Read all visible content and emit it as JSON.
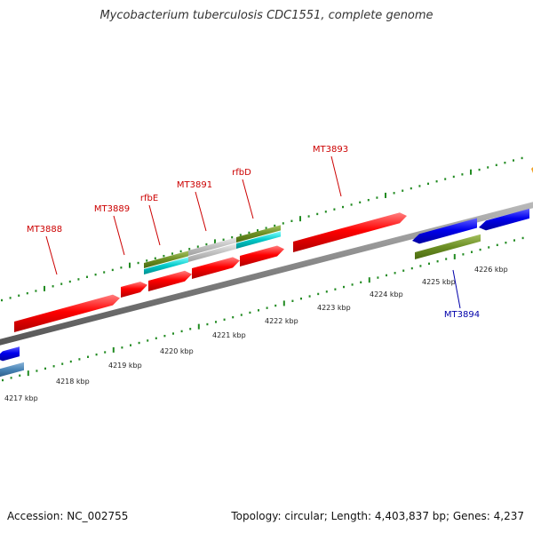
{
  "title": "Mycobacterium tuberculosis CDC1551, complete genome",
  "footer": {
    "accession": "Accession: NC_002755",
    "topology": "Topology: circular; Length: 4,403,837 bp; Genes: 4,237"
  },
  "colors": {
    "forward_gene": "#ff0000",
    "reverse_gene": "#0000ff",
    "green_feature": "#6b8e23",
    "cyan_feature": "#00c8c8",
    "grey_feature": "#c0c0c0",
    "steelblue_feature": "#4682b4",
    "tick": "#228b22",
    "backbone": "#808080",
    "forward_label": "#cc0000",
    "reverse_label": "#0000aa"
  },
  "scale_labels": [
    "4217 kbp",
    "4218 kbp",
    "4219 kbp",
    "4220 kbp",
    "4221 kbp",
    "4222 kbp",
    "4223 kbp",
    "4224 kbp",
    "4225 kbp",
    "4226 kbp"
  ],
  "gene_labels": {
    "forward": [
      "MT3888",
      "MT3889",
      "rfbE",
      "MT3891",
      "rfbD",
      "MT3893"
    ],
    "reverse": [
      "MT3894"
    ]
  }
}
